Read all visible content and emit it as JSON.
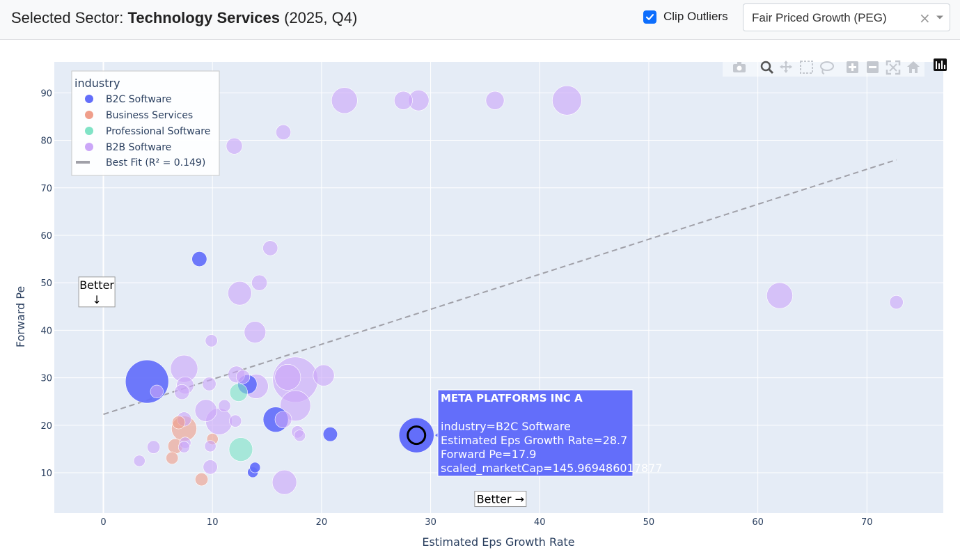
{
  "header": {
    "title_prefix": "Selected Sector: ",
    "sector": "Technology Services",
    "period": " (2025, Q4)",
    "clip_outliers_label": "Clip Outliers",
    "clip_outliers_checked": true,
    "metric_select_value": "Fair Priced Growth (PEG)",
    "clear_symbol": "×"
  },
  "modebar": {
    "icons": [
      "camera-icon",
      "zoom-icon",
      "pan-icon",
      "box-select-icon",
      "lasso-icon",
      "zoom-in-icon",
      "zoom-out-icon",
      "autoscale-icon",
      "reset-axes-icon",
      "plotly-logo-icon"
    ]
  },
  "chart_data": {
    "type": "scatter",
    "xlabel": "Estimated Eps Growth Rate",
    "ylabel": "Forward Pe",
    "xlim": [
      -4.5,
      77
    ],
    "ylim": [
      1.5,
      96.5
    ],
    "xticks": [
      0,
      10,
      20,
      30,
      40,
      50,
      60,
      70
    ],
    "yticks": [
      10,
      20,
      30,
      40,
      50,
      60,
      70,
      80,
      90
    ],
    "grid": true,
    "legend": {
      "title": "industry",
      "placement": "top-left",
      "entries": [
        "B2C Software",
        "Business Services",
        "Professional Software",
        "B2B Software"
      ],
      "best_fit_label": "Best Fit (R² = 0.149)"
    },
    "colors": {
      "B2C Software": "#636efa",
      "Business Services": "#ef9e8b",
      "Professional Software": "#80e3c6",
      "B2B Software": "#cba7f8",
      "plot_bg": "#e5ecf6",
      "fit_line": "#a0a0a8"
    },
    "series": [
      {
        "name": "B2C Software",
        "points": [
          {
            "x": 4.0,
            "y": 29.2,
            "s": 100
          },
          {
            "x": 8.8,
            "y": 55.0,
            "s": 12
          },
          {
            "x": 13.2,
            "y": 28.6,
            "s": 20
          },
          {
            "x": 15.8,
            "y": 21.2,
            "s": 34
          },
          {
            "x": 20.8,
            "y": 18.1,
            "s": 11
          },
          {
            "x": 13.7,
            "y": 10.1,
            "s": 6
          },
          {
            "x": 13.9,
            "y": 11.1,
            "s": 6
          },
          {
            "x": 28.7,
            "y": 17.9,
            "s": 64
          }
        ]
      },
      {
        "name": "Business Services",
        "points": [
          {
            "x": 7.4,
            "y": 19.3,
            "s": 34
          },
          {
            "x": 6.6,
            "y": 15.6,
            "s": 12
          },
          {
            "x": 6.3,
            "y": 13.1,
            "s": 8
          },
          {
            "x": 9.0,
            "y": 8.6,
            "s": 9
          },
          {
            "x": 10.0,
            "y": 17.1,
            "s": 7
          },
          {
            "x": 6.9,
            "y": 20.6,
            "s": 9
          }
        ]
      },
      {
        "name": "Professional Software",
        "points": [
          {
            "x": 12.6,
            "y": 14.9,
            "s": 30
          },
          {
            "x": 12.4,
            "y": 26.9,
            "s": 17
          }
        ]
      },
      {
        "name": "B2B Software",
        "points": [
          {
            "x": 22.1,
            "y": 88.4,
            "s": 36
          },
          {
            "x": 27.5,
            "y": 88.4,
            "s": 18
          },
          {
            "x": 28.9,
            "y": 88.4,
            "s": 23
          },
          {
            "x": 35.9,
            "y": 88.4,
            "s": 18
          },
          {
            "x": 42.5,
            "y": 88.4,
            "s": 46
          },
          {
            "x": 16.5,
            "y": 81.7,
            "s": 12
          },
          {
            "x": 12.0,
            "y": 78.8,
            "s": 14
          },
          {
            "x": 15.3,
            "y": 57.3,
            "s": 12
          },
          {
            "x": 12.5,
            "y": 47.8,
            "s": 30
          },
          {
            "x": 14.3,
            "y": 50.0,
            "s": 13
          },
          {
            "x": 13.9,
            "y": 39.6,
            "s": 25
          },
          {
            "x": 9.9,
            "y": 37.8,
            "s": 8
          },
          {
            "x": 62.0,
            "y": 47.3,
            "s": 36
          },
          {
            "x": 72.7,
            "y": 45.9,
            "s": 10
          },
          {
            "x": 7.4,
            "y": 31.9,
            "s": 40
          },
          {
            "x": 7.5,
            "y": 28.4,
            "s": 16
          },
          {
            "x": 7.2,
            "y": 27.0,
            "s": 12
          },
          {
            "x": 4.9,
            "y": 27.1,
            "s": 9
          },
          {
            "x": 9.7,
            "y": 28.7,
            "s": 10
          },
          {
            "x": 12.2,
            "y": 30.7,
            "s": 15
          },
          {
            "x": 14.0,
            "y": 28.2,
            "s": 32
          },
          {
            "x": 16.9,
            "y": 30.1,
            "s": 36
          },
          {
            "x": 17.6,
            "y": 29.6,
            "s": 110
          },
          {
            "x": 20.2,
            "y": 30.5,
            "s": 24
          },
          {
            "x": 12.8,
            "y": 30.2,
            "s": 10
          },
          {
            "x": 11.1,
            "y": 24.1,
            "s": 8
          },
          {
            "x": 17.6,
            "y": 24.1,
            "s": 50
          },
          {
            "x": 9.4,
            "y": 23.1,
            "s": 26
          },
          {
            "x": 10.6,
            "y": 20.8,
            "s": 38
          },
          {
            "x": 12.1,
            "y": 20.9,
            "s": 8
          },
          {
            "x": 7.4,
            "y": 21.3,
            "s": 11
          },
          {
            "x": 16.5,
            "y": 21.2,
            "s": 15
          },
          {
            "x": 17.8,
            "y": 18.6,
            "s": 8
          },
          {
            "x": 18.0,
            "y": 17.8,
            "s": 7
          },
          {
            "x": 7.5,
            "y": 16.3,
            "s": 7
          },
          {
            "x": 7.4,
            "y": 15.4,
            "s": 7
          },
          {
            "x": 9.8,
            "y": 15.6,
            "s": 7
          },
          {
            "x": 4.6,
            "y": 15.4,
            "s": 9
          },
          {
            "x": 9.8,
            "y": 11.2,
            "s": 11
          },
          {
            "x": 3.3,
            "y": 12.5,
            "s": 7
          },
          {
            "x": 16.6,
            "y": 8.0,
            "s": 32
          }
        ]
      }
    ],
    "best_fit": {
      "x": [
        0,
        72.7
      ],
      "y": [
        22.3,
        75.9
      ]
    },
    "annotations": [
      {
        "text": "Better",
        "arrow": "↓",
        "x": -0.6,
        "y": 48.0
      },
      {
        "text": "Better →",
        "x": 36.4,
        "y": 4.5
      }
    ],
    "highlighted_point": {
      "x": 28.7,
      "y": 17.9,
      "s": 64
    },
    "tooltip": {
      "title": "META PLATFORMS INC A",
      "lines": [
        "industry=B2C Software",
        "Estimated Eps Growth Rate=28.7",
        "Forward Pe=17.9",
        "scaled_marketCap=145.969486017877"
      ]
    }
  }
}
